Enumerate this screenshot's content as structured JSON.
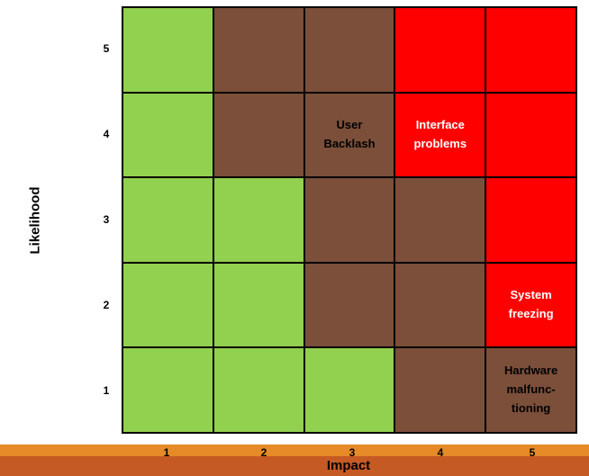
{
  "chart_data": {
    "type": "heatmap",
    "xlabel": "Impact",
    "ylabel": "Likelihood",
    "x_ticks": [
      "1",
      "2",
      "3",
      "4",
      "5"
    ],
    "y_ticks": [
      "5",
      "4",
      "3",
      "2",
      "1"
    ],
    "colors": {
      "low": "#92d050",
      "medium": "#7b4f3a",
      "high": "#ff0000"
    },
    "rows": [
      {
        "likelihood": "5",
        "cells": [
          {
            "level": "low",
            "label": ""
          },
          {
            "level": "medium",
            "label": ""
          },
          {
            "level": "medium",
            "label": ""
          },
          {
            "level": "high",
            "label": ""
          },
          {
            "level": "high",
            "label": ""
          }
        ]
      },
      {
        "likelihood": "4",
        "cells": [
          {
            "level": "low",
            "label": ""
          },
          {
            "level": "medium",
            "label": ""
          },
          {
            "level": "medium",
            "label": "User\nBacklash"
          },
          {
            "level": "high",
            "label": "Interface\nproblems"
          },
          {
            "level": "high",
            "label": ""
          }
        ]
      },
      {
        "likelihood": "3",
        "cells": [
          {
            "level": "low",
            "label": ""
          },
          {
            "level": "low",
            "label": ""
          },
          {
            "level": "medium",
            "label": ""
          },
          {
            "level": "medium",
            "label": ""
          },
          {
            "level": "high",
            "label": ""
          }
        ]
      },
      {
        "likelihood": "2",
        "cells": [
          {
            "level": "low",
            "label": ""
          },
          {
            "level": "low",
            "label": ""
          },
          {
            "level": "medium",
            "label": ""
          },
          {
            "level": "medium",
            "label": ""
          },
          {
            "level": "high",
            "label": "System\nfreezing"
          }
        ]
      },
      {
        "likelihood": "1",
        "cells": [
          {
            "level": "low",
            "label": ""
          },
          {
            "level": "low",
            "label": ""
          },
          {
            "level": "low",
            "label": ""
          },
          {
            "level": "medium",
            "label": ""
          },
          {
            "level": "medium",
            "label": "Hardware\nmalfunc-\ntioning"
          }
        ]
      }
    ]
  }
}
